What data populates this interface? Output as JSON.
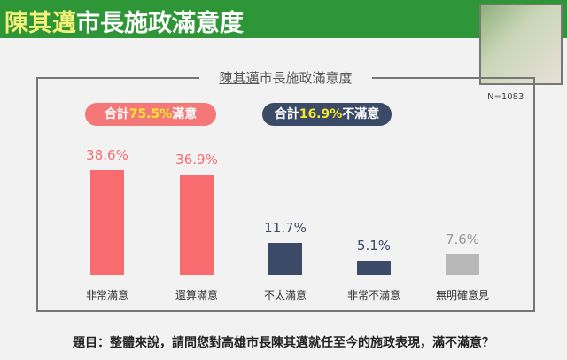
{
  "header": {
    "title_highlight": "陳其邁",
    "title_rest": "市長施政滿意度"
  },
  "sample": "N=1083",
  "chart_data": {
    "type": "bar",
    "title_highlight": "陳其邁",
    "title_rest": "市長施政滿意度",
    "categories": [
      "非常滿意",
      "還算滿意",
      "不太滿意",
      "非常不滿意",
      "無明確意見"
    ],
    "values": [
      38.6,
      36.9,
      11.7,
      5.1,
      7.6
    ],
    "labels": [
      "38.6%",
      "36.9%",
      "11.7%",
      "5.1%",
      "7.6%"
    ],
    "colors": [
      "#f86b6f",
      "#f86b6f",
      "#3b4a66",
      "#3b4a66",
      "#b8b8b8"
    ],
    "label_colors": [
      "#f86b6f",
      "#f86b6f",
      "#3b4a66",
      "#3b4a66",
      "#999999"
    ],
    "ylim": [
      0,
      40
    ],
    "grid": false,
    "annotations": [
      {
        "prefix": "合計",
        "value": "75.5%",
        "suffix": "滿意"
      },
      {
        "prefix": "合計",
        "value": "16.9%",
        "suffix": "不滿意"
      }
    ]
  },
  "question": "題目：整體來說，請問您對高雄市長陳其邁就任至今的施政表現，滿不滿意？"
}
